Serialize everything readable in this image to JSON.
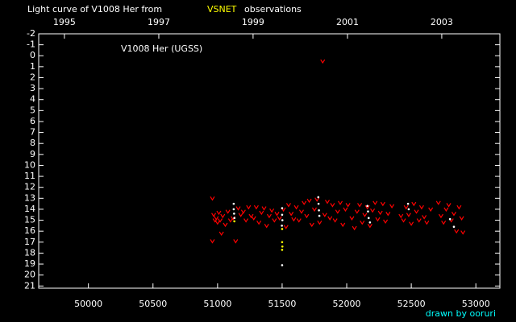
{
  "chart_data": {
    "type": "scatter",
    "title": "Light curve of V1008 Her from",
    "source": "VSNET",
    "title_suffix": "observations",
    "annotation": "V1008 Her (UGSS)",
    "credit": "drawn by ooruri",
    "xlim": [
      49615,
      53186
    ],
    "ylim": [
      -2,
      21.2
    ],
    "invert_y": true,
    "xticks": [
      50000,
      50500,
      51000,
      51500,
      52000,
      52500,
      53000
    ],
    "yticks": [
      -2,
      -1,
      0,
      1,
      2,
      3,
      4,
      5,
      6,
      7,
      8,
      9,
      10,
      11,
      12,
      13,
      14,
      15,
      16,
      17,
      18,
      19,
      20,
      21
    ],
    "x2ticks": [
      {
        "value": 49814,
        "label": "1995"
      },
      {
        "value": 50545,
        "label": "1997"
      },
      {
        "value": 51275,
        "label": "1999"
      },
      {
        "value": 52006,
        "label": "2001"
      },
      {
        "value": 52736,
        "label": "2003"
      }
    ],
    "series": [
      {
        "color": "#ff0000",
        "marker": "v",
        "x": [
          50960,
          50970,
          50980,
          50990,
          51000,
          51010,
          51020,
          51040,
          51060,
          51080,
          51100,
          51120,
          51140,
          50960,
          51030,
          51160,
          51180,
          51200,
          51220,
          51240,
          51260,
          51280,
          51300,
          51320,
          51340,
          51360,
          51380,
          51400,
          51420,
          51440,
          51460,
          51480,
          51510,
          51530,
          51550,
          51570,
          51590,
          51610,
          51630,
          51650,
          51670,
          51690,
          51710,
          51730,
          51750,
          51770,
          51790,
          51814,
          51830,
          51850,
          51870,
          51890,
          51910,
          51930,
          51950,
          51970,
          51990,
          52010,
          52040,
          52060,
          52080,
          52100,
          52120,
          52140,
          52160,
          52180,
          52200,
          52220,
          52240,
          52260,
          52280,
          52300,
          52320,
          52350,
          52420,
          52440,
          52460,
          52480,
          52500,
          52520,
          52540,
          52560,
          52580,
          52600,
          52620,
          52650,
          52710,
          52730,
          52750,
          52770,
          52790,
          52810,
          52830,
          52850,
          52870,
          52890,
          52900
        ],
        "values": [
          13,
          14.5,
          15,
          14.8,
          15.2,
          14.3,
          15,
          14.6,
          15.4,
          14.2,
          15,
          14.8,
          16.9,
          16.9,
          16.2,
          13.9,
          14.5,
          14.2,
          15,
          13.8,
          14.6,
          14.8,
          13.8,
          15.2,
          14.3,
          13.9,
          15.5,
          14.6,
          14.1,
          15,
          14.4,
          14.8,
          14,
          15.6,
          13.6,
          14.4,
          14.9,
          13.8,
          15,
          14.2,
          13.4,
          14.6,
          13.2,
          15.4,
          14,
          13.1,
          15.2,
          0.5,
          14.5,
          13.3,
          14.8,
          13.6,
          15,
          14.2,
          13.4,
          15.4,
          14,
          13.6,
          14.8,
          15.7,
          14.2,
          13.6,
          15.2,
          14.5,
          13.8,
          15.5,
          14.1,
          13.4,
          14.9,
          14.3,
          13.5,
          15.1,
          14.4,
          13.7,
          14.6,
          15,
          13.8,
          14.5,
          15.3,
          13.5,
          14.2,
          15,
          13.8,
          14.7,
          15.2,
          14,
          13.4,
          14.6,
          15.2,
          14,
          13.6,
          15,
          14.4,
          16,
          13.8,
          14.8,
          16.1
        ]
      },
      {
        "color": "#ffffff",
        "marker": "dot",
        "x": [
          51125,
          51125,
          51128,
          51130,
          51500,
          51500,
          51502,
          51498,
          51500,
          51780,
          51782,
          51785,
          51788,
          52160,
          52165,
          52170,
          52180,
          52475,
          52480,
          52800,
          52830
        ],
        "values": [
          13.5,
          14,
          14.4,
          14.8,
          13.9,
          14.5,
          15,
          15.5,
          19.1,
          12.9,
          13.5,
          14.1,
          14.6,
          13.7,
          14.2,
          14.8,
          15.2,
          13.5,
          14,
          14.9,
          15.6
        ]
      },
      {
        "color": "#ffff00",
        "marker": "dot",
        "x": [
          51500,
          51500,
          51502,
          51500,
          51130
        ],
        "values": [
          15.8,
          17,
          17.4,
          17.7,
          15.1
        ]
      }
    ]
  }
}
